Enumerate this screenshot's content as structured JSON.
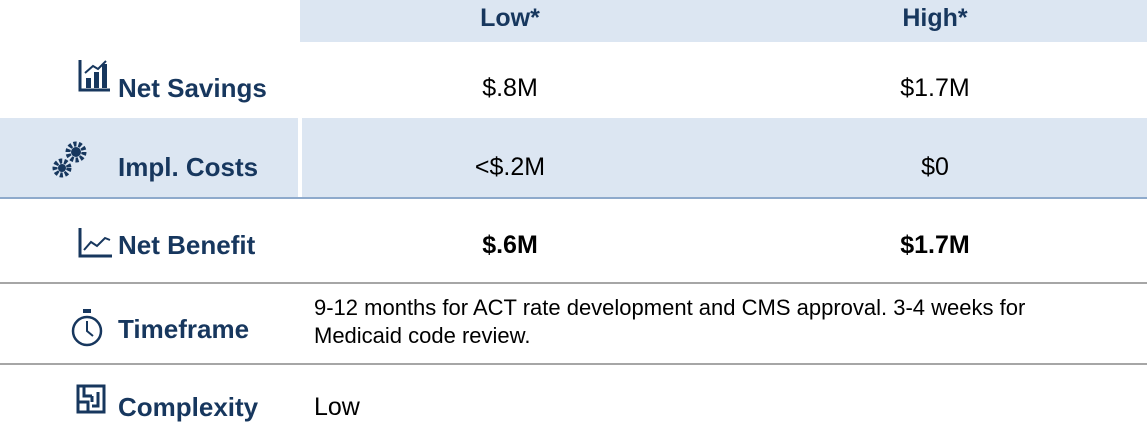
{
  "header": {
    "columns": [
      "Low*",
      "High*"
    ]
  },
  "rows": [
    {
      "label": "Net Savings",
      "low": "$.8M",
      "high": "$1.7M"
    },
    {
      "label": "Impl. Costs",
      "low": "<$.2M",
      "high": "$0"
    },
    {
      "label": "Net Benefit",
      "low": "$.6M",
      "high": "$1.7M"
    }
  ],
  "timeframe": {
    "label": "Timeframe",
    "text": "9-12 months for ACT rate development and CMS approval. 3-4 weeks for Medicaid code review."
  },
  "complexity": {
    "label": "Complexity",
    "text": "Low"
  }
}
